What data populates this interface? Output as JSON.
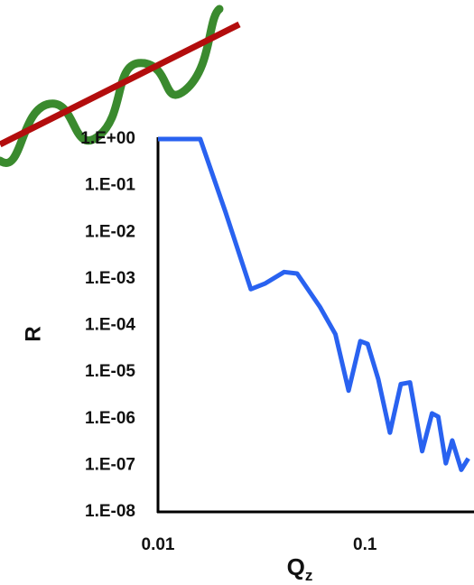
{
  "chart_data": {
    "type": "line",
    "x_label": "Q",
    "x_label_subscript": "z",
    "y_label": "R",
    "x_scale": "log",
    "y_scale": "log",
    "xlim": [
      0.01,
      0.32
    ],
    "ylim": [
      1e-08,
      1
    ],
    "xticks": [
      0.01,
      0.1
    ],
    "yticks": [
      {
        "value": 1,
        "label": "1.E+00"
      },
      {
        "value": 0.1,
        "label": "1.E-01"
      },
      {
        "value": 0.01,
        "label": "1.E-02"
      },
      {
        "value": 0.001,
        "label": "1.E-03"
      },
      {
        "value": 0.0001,
        "label": "1.E-04"
      },
      {
        "value": 1e-05,
        "label": "1.E-05"
      },
      {
        "value": 1e-06,
        "label": "1.E-06"
      },
      {
        "value": 1e-07,
        "label": "1.E-07"
      },
      {
        "value": 1e-08,
        "label": "1.E-08"
      }
    ],
    "x": [
      0.01,
      0.016,
      0.0212,
      0.0281,
      0.033,
      0.0407,
      0.047,
      0.0606,
      0.072,
      0.0834,
      0.095,
      0.103,
      0.116,
      0.132,
      0.149,
      0.165,
      0.189,
      0.211,
      0.226,
      0.246,
      0.264,
      0.292,
      0.316
    ],
    "series": [
      {
        "color": "#2962f0",
        "values": [
          1,
          1,
          0.027,
          0.0006,
          0.0008,
          0.0014,
          0.0013,
          0.00025,
          6.5e-05,
          4e-06,
          4.6e-05,
          4e-05,
          7e-06,
          5e-07,
          5.5e-06,
          6e-06,
          2e-07,
          1.3e-06,
          1.1e-06,
          1.1e-07,
          3.4e-07,
          8e-08,
          1.4e-07
        ]
      }
    ]
  }
}
